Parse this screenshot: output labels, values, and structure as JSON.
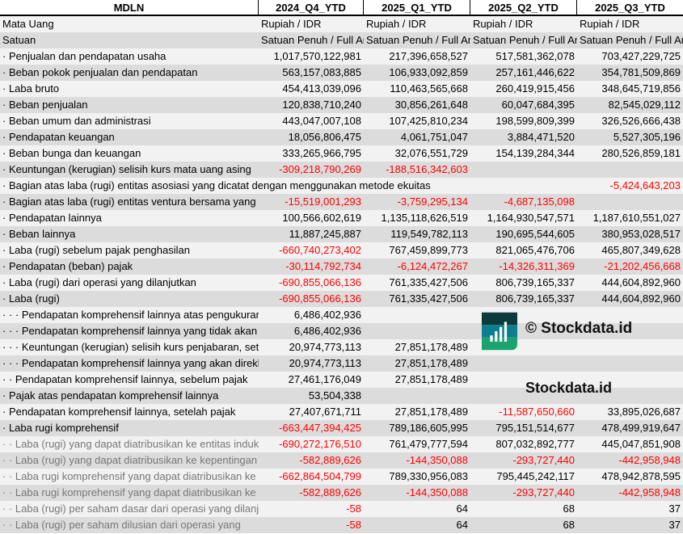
{
  "header": {
    "title": "MDLN",
    "columns": [
      "2024_Q4_YTD",
      "2025_Q1_YTD",
      "2025_Q2_YTD",
      "2025_Q3_YTD"
    ]
  },
  "rows": [
    {
      "label": "Mata Uang",
      "values": [
        "Rupiah / IDR",
        "Rupiah / IDR",
        "Rupiah / IDR",
        "Rupiah / IDR"
      ],
      "text": true
    },
    {
      "label": "Satuan",
      "values": [
        "Satuan Penuh / Full Amount",
        "Satuan Penuh / Full Amount",
        "Satuan Penuh / Full Amount",
        "Satuan Penuh / Full Amount"
      ],
      "text": true
    },
    {
      "label": "· Penjualan dan pendapatan usaha",
      "values": [
        "1,017,570,122,981",
        "217,396,658,527",
        "517,581,362,078",
        "703,427,229,725"
      ]
    },
    {
      "label": "· Beban pokok penjualan dan pendapatan",
      "values": [
        "563,157,083,885",
        "106,933,092,859",
        "257,161,446,622",
        "354,781,509,869"
      ]
    },
    {
      "label": "· Laba bruto",
      "values": [
        "454,413,039,096",
        "110,463,565,668",
        "260,419,915,456",
        "348,645,719,856"
      ]
    },
    {
      "label": "· Beban penjualan",
      "values": [
        "120,838,710,240",
        "30,856,261,648",
        "60,047,684,395",
        "82,545,029,112"
      ]
    },
    {
      "label": "· Beban umum dan administrasi",
      "values": [
        "443,047,007,108",
        "107,425,810,234",
        "198,599,809,399",
        "326,526,666,438"
      ]
    },
    {
      "label": "· Pendapatan keuangan",
      "values": [
        "18,056,806,475",
        "4,061,751,047",
        "3,884,471,520",
        "5,527,305,196"
      ]
    },
    {
      "label": "· Beban bunga dan keuangan",
      "values": [
        "333,265,966,795",
        "32,076,551,729",
        "154,139,284,344",
        "280,526,859,181"
      ]
    },
    {
      "label": "· Keuntungan (kerugian) selisih kurs mata uang asing",
      "values": [
        "-309,218,790,269",
        "-188,516,342,603",
        "",
        ""
      ]
    },
    {
      "label": "· Bagian atas laba (rugi) entitas asosiasi yang dicatat dengan menggunakan metode ekuitas",
      "values": [
        "",
        "",
        "",
        "-5,424,643,203"
      ],
      "wide": true
    },
    {
      "label": "· Bagian atas laba (rugi) entitas ventura bersama yang",
      "values": [
        "-15,519,001,293",
        "-3,759,295,134",
        "-4,687,135,098",
        ""
      ]
    },
    {
      "label": "· Pendapatan lainnya",
      "values": [
        "100,566,602,619",
        "1,135,118,626,519",
        "1,164,930,547,571",
        "1,187,610,551,027"
      ]
    },
    {
      "label": "· Beban lainnya",
      "values": [
        "11,887,245,887",
        "119,549,782,113",
        "190,695,544,605",
        "380,953,028,517"
      ]
    },
    {
      "label": "· Laba (rugi) sebelum pajak penghasilan",
      "values": [
        "-660,740,273,402",
        "767,459,899,773",
        "821,065,476,706",
        "465,807,349,628"
      ]
    },
    {
      "label": "· Pendapatan (beban) pajak",
      "values": [
        "-30,114,792,734",
        "-6,124,472,267",
        "-14,326,311,369",
        "-21,202,456,668"
      ]
    },
    {
      "label": "· Laba (rugi) dari operasi yang dilanjutkan",
      "values": [
        "-690,855,066,136",
        "761,335,427,506",
        "806,739,165,337",
        "444,604,892,960"
      ]
    },
    {
      "label": "· Laba (rugi)",
      "values": [
        "-690,855,066,136",
        "761,335,427,506",
        "806,739,165,337",
        "444,604,892,960"
      ]
    },
    {
      "label": "· · · Pendapatan komprehensif lainnya atas pengukuran",
      "values": [
        "6,486,402,936",
        "",
        "",
        ""
      ]
    },
    {
      "label": "· · · Pendapatan komprehensif lainnya yang tidak akan",
      "values": [
        "6,486,402,936",
        "",
        "",
        ""
      ]
    },
    {
      "label": "· · · Keuntungan (kerugian) selisih kurs penjabaran, setelah",
      "values": [
        "20,974,773,113",
        "27,851,178,489",
        "",
        ""
      ]
    },
    {
      "label": "· · · Pendapatan komprehensif lainnya yang akan direklasifikasi",
      "values": [
        "20,974,773,113",
        "27,851,178,489",
        "",
        ""
      ]
    },
    {
      "label": "· · Pendapatan komprehensif lainnya, sebelum pajak",
      "values": [
        "27,461,176,049",
        "27,851,178,489",
        "",
        ""
      ]
    },
    {
      "label": "· Pajak atas pendapatan komprehensif lainnya",
      "values": [
        "53,504,338",
        "",
        "",
        ""
      ]
    },
    {
      "label": "· Pendapatan komprehensif lainnya, setelah pajak",
      "values": [
        "27,407,671,711",
        "27,851,178,489",
        "-11,587,650,660",
        "33,895,026,687"
      ]
    },
    {
      "label": "· Laba rugi komprehensif",
      "values": [
        "-663,447,394,425",
        "789,186,605,995",
        "795,151,514,677",
        "478,499,919,647"
      ]
    },
    {
      "label": "· · Laba (rugi) yang dapat diatribusikan ke entitas induk",
      "values": [
        "-690,272,176,510",
        "761,479,777,594",
        "807,032,892,777",
        "445,047,851,908"
      ],
      "muted": true
    },
    {
      "label": "· · Laba (rugi) yang dapat diatribusikan ke kepentingan",
      "values": [
        "-582,889,626",
        "-144,350,088",
        "-293,727,440",
        "-442,958,948"
      ],
      "muted": true
    },
    {
      "label": "· · Laba rugi komprehensif yang dapat diatribusikan ke",
      "values": [
        "-662,864,504,799",
        "789,330,956,083",
        "795,445,242,117",
        "478,942,878,595"
      ],
      "muted": true
    },
    {
      "label": "· · Laba rugi komprehensif yang dapat diatribusikan ke",
      "values": [
        "-582,889,626",
        "-144,350,088",
        "-293,727,440",
        "-442,958,948"
      ],
      "muted": true
    },
    {
      "label": "· · Laba (rugi) per saham dasar dari operasi yang dilanjutkan",
      "values": [
        "-58",
        "64",
        "68",
        "37"
      ],
      "muted": true
    },
    {
      "label": "· · Laba (rugi) per saham dilusian dari operasi yang",
      "values": [
        "-58",
        "64",
        "68",
        "37"
      ],
      "muted": true
    }
  ],
  "watermark": {
    "text": "© Stockdata.id",
    "brand": "Stockdata.id"
  },
  "colors": {
    "negative": "#ff0000"
  }
}
